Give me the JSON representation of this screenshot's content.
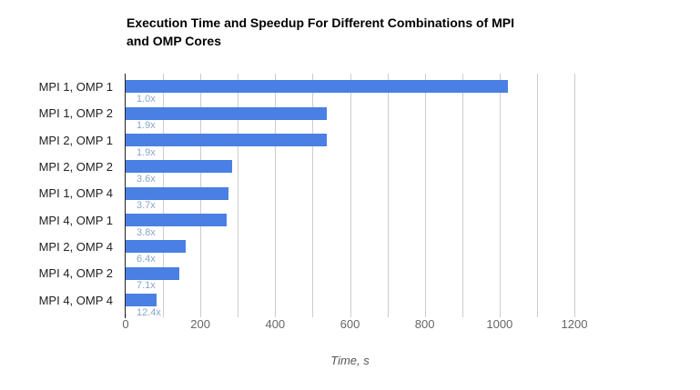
{
  "chart_data": {
    "type": "bar",
    "orientation": "horizontal",
    "title": "Execution Time and Speedup For Different Combinations of MPI and OMP Cores",
    "title_lines": [
      "Execution Time and Speedup For Different Combinations of MPI",
      "and OMP Cores"
    ],
    "categories": [
      "MPI 1, OMP 1",
      "MPI 1, OMP 2",
      "MPI 2, OMP 1",
      "MPI 2, OMP 2",
      "MPI 1, OMP 4",
      "MPI 4, OMP 1",
      "MPI 2, OMP 4",
      "MPI 4, OMP 2",
      "MPI 4, OMP 4"
    ],
    "series": [
      {
        "name": "Time, s",
        "values": [
          1022,
          538,
          538,
          284,
          276,
          269,
          160,
          144,
          82
        ]
      }
    ],
    "bar_annotations": [
      "1.0x",
      "1.9x",
      "1.9x",
      "3.6x",
      "3.7x",
      "3.8x",
      "6.4x",
      "7.1x",
      "12.4x"
    ],
    "xlabel": "Time, s",
    "xlim": [
      0,
      1200
    ],
    "x_tick_values": [
      0,
      200,
      400,
      600,
      800,
      1000,
      1200
    ],
    "x_tick_labels": [
      "0",
      "200",
      "400",
      "600",
      "800",
      "1000",
      "1200"
    ],
    "x_minor_tick_step": 100,
    "grid": true,
    "legend": "none",
    "background": "#FFFFFF",
    "colors": {
      "bar": "#4A80E4",
      "annotation_text": "#8AA6C6",
      "gridline": "#CCCCCC",
      "axis_line": "#222222",
      "tick": "#CCCCCC",
      "tick_label": "#666666",
      "category_label": "#222222",
      "title": "#000000",
      "axis_title": "#555555"
    }
  }
}
